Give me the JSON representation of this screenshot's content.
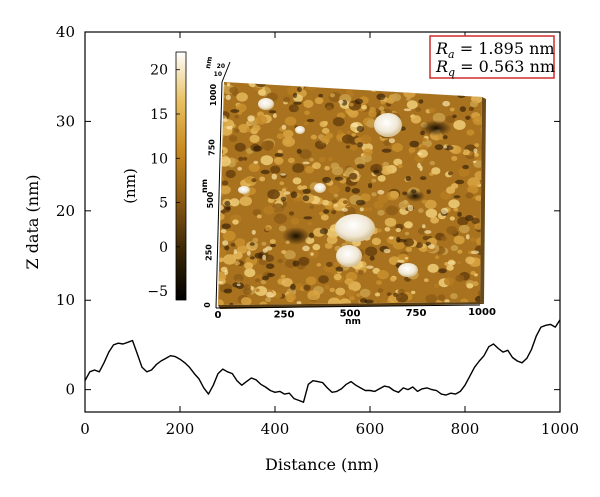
{
  "chart_data": {
    "type": "line",
    "xlabel": "Distance (nm)",
    "ylabel": "Z data (nm)",
    "xlim": [
      0,
      1000
    ],
    "ylim": [
      -2.5,
      40
    ],
    "x_ticks": [
      "0",
      "200",
      "400",
      "600",
      "800",
      "1000"
    ],
    "y_ticks": [
      "0",
      "10",
      "20",
      "30",
      "40"
    ],
    "x": [
      0,
      10,
      20,
      30,
      40,
      50,
      60,
      70,
      80,
      90,
      100,
      110,
      120,
      130,
      140,
      150,
      160,
      170,
      180,
      190,
      200,
      210,
      220,
      230,
      240,
      250,
      260,
      270,
      280,
      290,
      300,
      310,
      320,
      330,
      340,
      350,
      360,
      370,
      380,
      390,
      400,
      410,
      420,
      430,
      440,
      450,
      460,
      470,
      480,
      490,
      500,
      510,
      520,
      530,
      540,
      550,
      560,
      570,
      580,
      590,
      600,
      610,
      620,
      630,
      640,
      650,
      660,
      670,
      680,
      690,
      700,
      710,
      720,
      730,
      740,
      750,
      760,
      770,
      780,
      790,
      800,
      810,
      820,
      830,
      840,
      850,
      860,
      870,
      880,
      890,
      900,
      910,
      920,
      930,
      940,
      950,
      960,
      970,
      980,
      990,
      1000
    ],
    "y": [
      1.0,
      2.0,
      2.2,
      2.0,
      3.0,
      4.2,
      5.0,
      5.2,
      5.1,
      5.3,
      5.5,
      4.0,
      2.5,
      2.0,
      2.2,
      2.8,
      3.2,
      3.5,
      3.8,
      3.7,
      3.4,
      3.0,
      2.5,
      1.8,
      1.2,
      0.2,
      -0.5,
      0.5,
      1.8,
      2.3,
      2.0,
      1.8,
      1.0,
      0.5,
      0.9,
      1.3,
      1.1,
      0.6,
      0.3,
      -0.1,
      -0.3,
      -0.2,
      -0.5,
      -0.4,
      -1.0,
      -1.2,
      -1.4,
      0.6,
      1.0,
      0.9,
      0.8,
      0.2,
      -0.3,
      -0.2,
      0.1,
      0.6,
      0.9,
      0.5,
      0.2,
      -0.1,
      -0.1,
      -0.2,
      0.1,
      0.4,
      0.3,
      -0.1,
      -0.3,
      0.2,
      0.0,
      0.3,
      -0.2,
      0.1,
      0.2,
      0.0,
      -0.1,
      -0.5,
      -0.6,
      -0.4,
      -0.5,
      -0.2,
      0.5,
      1.5,
      2.5,
      3.2,
      3.8,
      4.8,
      5.1,
      4.6,
      4.2,
      4.4,
      3.6,
      3.2,
      3.0,
      3.5,
      4.5,
      6.0,
      7.0,
      7.2,
      7.3,
      7.0,
      7.8
    ],
    "line_color": "#000000"
  },
  "inset": {
    "colorbar_label": "(nm)",
    "colorbar_ticks": [
      "20",
      "15",
      "10",
      "5",
      "0",
      "−5"
    ],
    "colorbar_values": [
      20,
      15,
      10,
      5,
      0,
      -5
    ],
    "colorbar_range": [
      -6,
      22
    ],
    "colorbar_colors": [
      "#000000",
      "#3b2606",
      "#8a5a12",
      "#c8891f",
      "#e8c060",
      "#ffffff"
    ],
    "axis_label": "nm",
    "x_ticks": [
      "0",
      "250",
      "500",
      "750",
      "1000"
    ],
    "y_ticks": [
      "0",
      "250",
      "500",
      "750",
      "1000"
    ],
    "z_ticks": [
      "10",
      "20"
    ]
  },
  "roughness": {
    "ra_symbol": "R",
    "ra_sub": "a",
    "ra_value": " = 1.895 nm",
    "rq_symbol": "R",
    "rq_sub": "q",
    "rq_value": " = 0.563 nm",
    "box_color": "#d12c2c"
  }
}
